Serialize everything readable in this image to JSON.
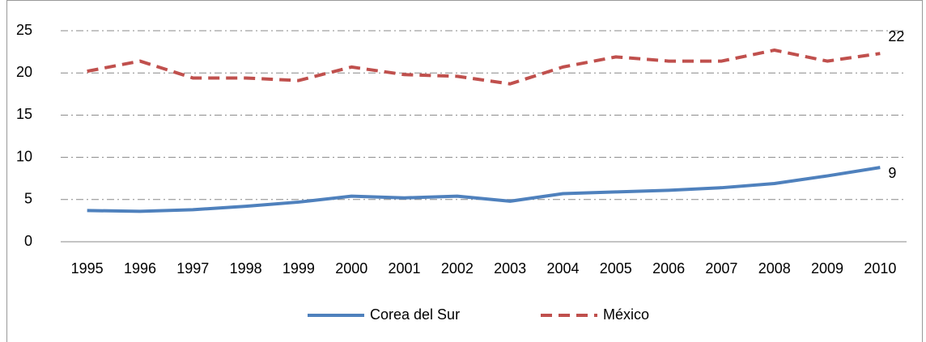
{
  "chart_data": {
    "type": "line",
    "categories": [
      "1995",
      "1996",
      "1997",
      "1998",
      "1999",
      "2000",
      "2001",
      "2002",
      "2003",
      "2004",
      "2005",
      "2006",
      "2007",
      "2008",
      "2009",
      "2010"
    ],
    "series": [
      {
        "name": "Corea del Sur",
        "color": "#4f81bd",
        "dash": "solid",
        "values": [
          3.7,
          3.6,
          3.8,
          4.2,
          4.7,
          5.4,
          5.2,
          5.4,
          4.8,
          5.7,
          5.9,
          6.1,
          6.4,
          6.9,
          7.8,
          8.8
        ],
        "value_labels": [
          null,
          null,
          null,
          null,
          null,
          null,
          null,
          null,
          null,
          null,
          null,
          null,
          null,
          null,
          null,
          "9"
        ]
      },
      {
        "name": "México",
        "color": "#c0504d",
        "dash": "dashed",
        "values": [
          20.2,
          21.4,
          19.4,
          19.4,
          19.1,
          20.7,
          19.8,
          19.6,
          18.7,
          20.7,
          21.9,
          21.4,
          21.4,
          22.7,
          21.4,
          22.3
        ],
        "value_labels": [
          null,
          null,
          null,
          null,
          null,
          null,
          null,
          null,
          null,
          null,
          null,
          null,
          null,
          null,
          null,
          "22"
        ]
      }
    ],
    "ylim": [
      0,
      25
    ],
    "yticks": [
      0,
      5,
      10,
      15,
      20,
      25
    ],
    "grid": true,
    "legend": "bottom"
  }
}
